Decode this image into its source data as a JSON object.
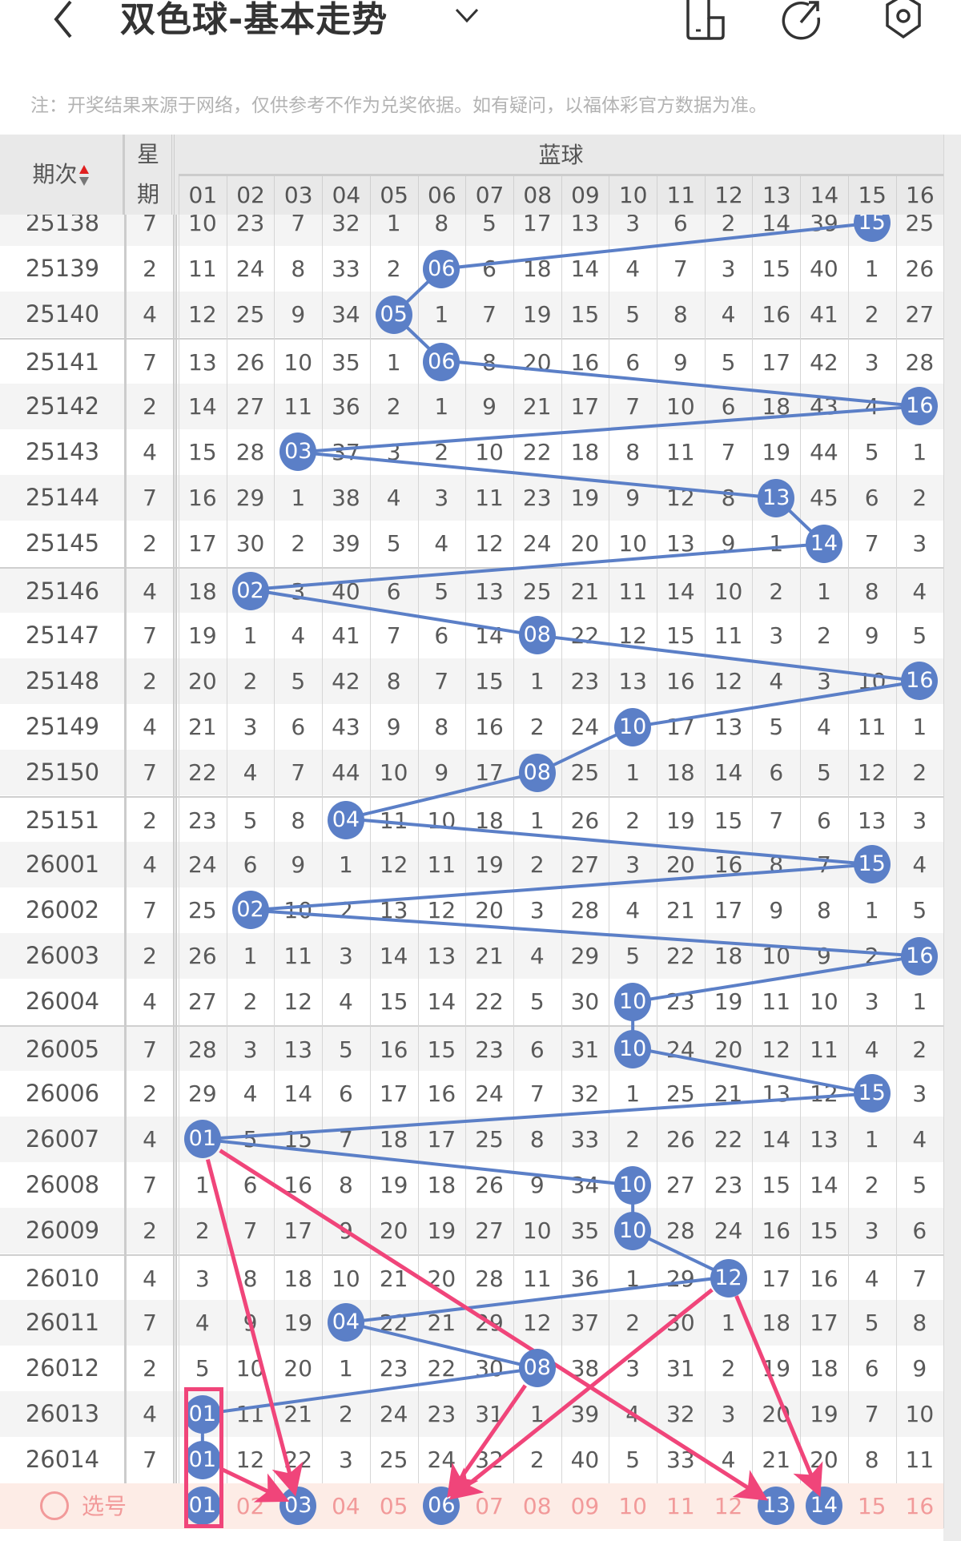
{
  "header": {
    "title": "双色球-基本走势",
    "icons": [
      "back-chevron-icon",
      "dropdown-chevron-icon",
      "phone-layout-icon",
      "share-icon",
      "settings-icon"
    ]
  },
  "note": "注：开奖结果来源于网络，仅供参考不作为兑奖依据。如有疑问，以福体彩官方数据为准。",
  "table": {
    "col_period": "期次",
    "col_week_1": "星",
    "col_week_2": "期",
    "group_label": "蓝球",
    "numbers": [
      "01",
      "02",
      "03",
      "04",
      "05",
      "06",
      "07",
      "08",
      "09",
      "10",
      "11",
      "12",
      "13",
      "14",
      "15",
      "16"
    ],
    "rows": [
      {
        "period": "25138",
        "week": "7",
        "hit": 14,
        "values": [
          "10",
          "23",
          "7",
          "32",
          "1",
          "8",
          "5",
          "17",
          "13",
          "3",
          "6",
          "2",
          "14",
          "39",
          "15",
          "25"
        ]
      },
      {
        "period": "25139",
        "week": "2",
        "hit": 5,
        "values": [
          "11",
          "24",
          "8",
          "33",
          "2",
          "06",
          "6",
          "18",
          "14",
          "4",
          "7",
          "3",
          "15",
          "40",
          "1",
          "26"
        ]
      },
      {
        "period": "25140",
        "week": "4",
        "hit": 4,
        "values": [
          "12",
          "25",
          "9",
          "34",
          "05",
          "1",
          "7",
          "19",
          "15",
          "5",
          "8",
          "4",
          "16",
          "41",
          "2",
          "27"
        ]
      },
      {
        "period": "25141",
        "week": "7",
        "hit": 5,
        "values": [
          "13",
          "26",
          "10",
          "35",
          "1",
          "06",
          "8",
          "20",
          "16",
          "6",
          "9",
          "5",
          "17",
          "42",
          "3",
          "28"
        ]
      },
      {
        "period": "25142",
        "week": "2",
        "hit": 15,
        "values": [
          "14",
          "27",
          "11",
          "36",
          "2",
          "1",
          "9",
          "21",
          "17",
          "7",
          "10",
          "6",
          "18",
          "43",
          "4",
          "16"
        ]
      },
      {
        "period": "25143",
        "week": "4",
        "hit": 2,
        "values": [
          "15",
          "28",
          "03",
          "37",
          "3",
          "2",
          "10",
          "22",
          "18",
          "8",
          "11",
          "7",
          "19",
          "44",
          "5",
          "1"
        ]
      },
      {
        "period": "25144",
        "week": "7",
        "hit": 12,
        "values": [
          "16",
          "29",
          "1",
          "38",
          "4",
          "3",
          "11",
          "23",
          "19",
          "9",
          "12",
          "8",
          "13",
          "45",
          "6",
          "2"
        ]
      },
      {
        "period": "25145",
        "week": "2",
        "hit": 13,
        "values": [
          "17",
          "30",
          "2",
          "39",
          "5",
          "4",
          "12",
          "24",
          "20",
          "10",
          "13",
          "9",
          "1",
          "14",
          "7",
          "3"
        ]
      },
      {
        "period": "25146",
        "week": "4",
        "hit": 1,
        "values": [
          "18",
          "02",
          "3",
          "40",
          "6",
          "5",
          "13",
          "25",
          "21",
          "11",
          "14",
          "10",
          "2",
          "1",
          "8",
          "4"
        ]
      },
      {
        "period": "25147",
        "week": "7",
        "hit": 7,
        "values": [
          "19",
          "1",
          "4",
          "41",
          "7",
          "6",
          "14",
          "08",
          "22",
          "12",
          "15",
          "11",
          "3",
          "2",
          "9",
          "5"
        ]
      },
      {
        "period": "25148",
        "week": "2",
        "hit": 15,
        "values": [
          "20",
          "2",
          "5",
          "42",
          "8",
          "7",
          "15",
          "1",
          "23",
          "13",
          "16",
          "12",
          "4",
          "3",
          "10",
          "16"
        ]
      },
      {
        "period": "25149",
        "week": "4",
        "hit": 9,
        "values": [
          "21",
          "3",
          "6",
          "43",
          "9",
          "8",
          "16",
          "2",
          "24",
          "10",
          "17",
          "13",
          "5",
          "4",
          "11",
          "1"
        ]
      },
      {
        "period": "25150",
        "week": "7",
        "hit": 7,
        "values": [
          "22",
          "4",
          "7",
          "44",
          "10",
          "9",
          "17",
          "08",
          "25",
          "1",
          "18",
          "14",
          "6",
          "5",
          "12",
          "2"
        ]
      },
      {
        "period": "25151",
        "week": "2",
        "hit": 3,
        "values": [
          "23",
          "5",
          "8",
          "04",
          "11",
          "10",
          "18",
          "1",
          "26",
          "2",
          "19",
          "15",
          "7",
          "6",
          "13",
          "3"
        ]
      },
      {
        "period": "26001",
        "week": "4",
        "hit": 14,
        "values": [
          "24",
          "6",
          "9",
          "1",
          "12",
          "11",
          "19",
          "2",
          "27",
          "3",
          "20",
          "16",
          "8",
          "7",
          "15",
          "4"
        ]
      },
      {
        "period": "26002",
        "week": "7",
        "hit": 1,
        "values": [
          "25",
          "02",
          "10",
          "2",
          "13",
          "12",
          "20",
          "3",
          "28",
          "4",
          "21",
          "17",
          "9",
          "8",
          "1",
          "5"
        ]
      },
      {
        "period": "26003",
        "week": "2",
        "hit": 15,
        "values": [
          "26",
          "1",
          "11",
          "3",
          "14",
          "13",
          "21",
          "4",
          "29",
          "5",
          "22",
          "18",
          "10",
          "9",
          "2",
          "16"
        ]
      },
      {
        "period": "26004",
        "week": "4",
        "hit": 9,
        "values": [
          "27",
          "2",
          "12",
          "4",
          "15",
          "14",
          "22",
          "5",
          "30",
          "10",
          "23",
          "19",
          "11",
          "10",
          "3",
          "1"
        ]
      },
      {
        "period": "26005",
        "week": "7",
        "hit": 9,
        "values": [
          "28",
          "3",
          "13",
          "5",
          "16",
          "15",
          "23",
          "6",
          "31",
          "10",
          "24",
          "20",
          "12",
          "11",
          "4",
          "2"
        ]
      },
      {
        "period": "26006",
        "week": "2",
        "hit": 14,
        "values": [
          "29",
          "4",
          "14",
          "6",
          "17",
          "16",
          "24",
          "7",
          "32",
          "1",
          "25",
          "21",
          "13",
          "12",
          "15",
          "3"
        ]
      },
      {
        "period": "26007",
        "week": "4",
        "hit": 0,
        "values": [
          "01",
          "5",
          "15",
          "7",
          "18",
          "17",
          "25",
          "8",
          "33",
          "2",
          "26",
          "22",
          "14",
          "13",
          "1",
          "4"
        ]
      },
      {
        "period": "26008",
        "week": "7",
        "hit": 9,
        "values": [
          "1",
          "6",
          "16",
          "8",
          "19",
          "18",
          "26",
          "9",
          "34",
          "10",
          "27",
          "23",
          "15",
          "14",
          "2",
          "5"
        ]
      },
      {
        "period": "26009",
        "week": "2",
        "hit": 9,
        "values": [
          "2",
          "7",
          "17",
          "9",
          "20",
          "19",
          "27",
          "10",
          "35",
          "10",
          "28",
          "24",
          "16",
          "15",
          "3",
          "6"
        ]
      },
      {
        "period": "26010",
        "week": "4",
        "hit": 11,
        "values": [
          "3",
          "8",
          "18",
          "10",
          "21",
          "20",
          "28",
          "11",
          "36",
          "1",
          "29",
          "12",
          "17",
          "16",
          "4",
          "7"
        ]
      },
      {
        "period": "26011",
        "week": "7",
        "hit": 3,
        "values": [
          "4",
          "9",
          "19",
          "04",
          "22",
          "21",
          "29",
          "12",
          "37",
          "2",
          "30",
          "1",
          "18",
          "17",
          "5",
          "8"
        ]
      },
      {
        "period": "26012",
        "week": "2",
        "hit": 7,
        "values": [
          "5",
          "10",
          "20",
          "1",
          "23",
          "22",
          "30",
          "08",
          "38",
          "3",
          "31",
          "2",
          "19",
          "18",
          "6",
          "9"
        ]
      },
      {
        "period": "26013",
        "week": "4",
        "hit": 0,
        "values": [
          "01",
          "11",
          "21",
          "2",
          "24",
          "23",
          "31",
          "1",
          "39",
          "4",
          "32",
          "3",
          "20",
          "19",
          "7",
          "10"
        ]
      },
      {
        "period": "26014",
        "week": "7",
        "hit": 0,
        "values": [
          "01",
          "12",
          "22",
          "3",
          "25",
          "24",
          "32",
          "2",
          "40",
          "5",
          "33",
          "4",
          "21",
          "20",
          "8",
          "11"
        ]
      }
    ],
    "select_row": {
      "label": "选号",
      "selected": [
        "01",
        "03",
        "06",
        "13",
        "14"
      ]
    },
    "annotations": {
      "highlight_box": {
        "column": "01",
        "from_period": "26013",
        "to": "select_row"
      },
      "arrows": [
        {
          "from": [
            "26007",
            "01"
          ],
          "to": [
            "select",
            "03"
          ]
        },
        {
          "from": [
            "26014",
            "01"
          ],
          "to": [
            "select",
            "03"
          ]
        },
        {
          "from": [
            "26007",
            "01"
          ],
          "to": [
            "select",
            "13"
          ]
        },
        {
          "from": [
            "26010",
            "12"
          ],
          "to": [
            "select",
            "06"
          ]
        },
        {
          "from": [
            "26012",
            "08"
          ],
          "to": [
            "select",
            "06"
          ]
        },
        {
          "from": [
            "26010",
            "12"
          ],
          "to": [
            "select",
            "14"
          ]
        }
      ]
    }
  },
  "colors": {
    "ball": "#5b7fc7",
    "line": "#5b7fc7",
    "arrow": "#f0457a",
    "select_bg": "#fdece6",
    "select_text": "#f29a9a",
    "header_bg": "#e9e9e9",
    "sort_up": "#e02020"
  }
}
